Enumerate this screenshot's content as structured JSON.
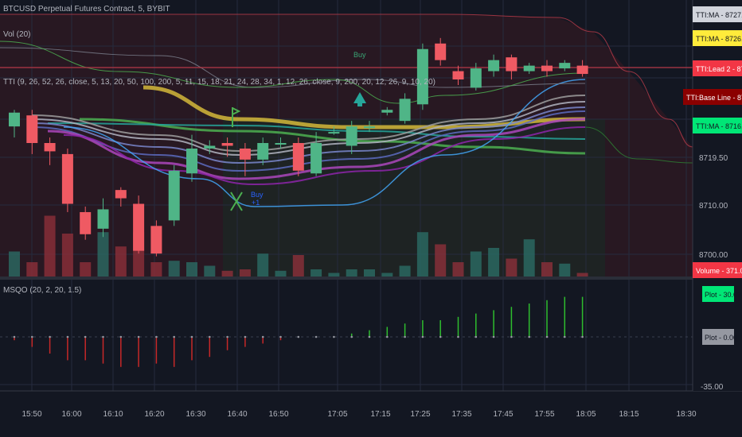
{
  "header": {
    "title": "BTCUSD Perpetual Futures Contract, 5, BYBIT",
    "volume_study": "Vol (20)",
    "tti_study": "TTI (9, 26, 52, 26, close, 5, 13, 20, 50, 100, 200, 5, 11, 15, 18, 21, 24, 28, 34, 1, 12, 26, close, 9, 200, 20, 12, 26, 9, 10, 20)",
    "msqo_study": "MSQO (20, 2, 20, 1.5)"
  },
  "annotations": {
    "buy_top": "Buy",
    "buy_lower": "Buy",
    "buy_lower_sub": "+1"
  },
  "price_axis": {
    "ticks": [
      "8719.50",
      "8710.00",
      "8700.00"
    ],
    "labels": [
      {
        "text": "TTI:MA - 8727.42",
        "color": "#d1d4dc",
        "textcolor": "#131722"
      },
      {
        "text": "TTI:MA - 8726.61",
        "color": "#ffeb3b",
        "textcolor": "#131722"
      },
      {
        "text": "TTI:Lead 2 - 8722.25",
        "color": "#f23645",
        "textcolor": "#ffffff"
      },
      {
        "text": "TTI:Base Line - 8722.25",
        "color": "#8b0000",
        "textcolor": "#ffffff"
      },
      {
        "text": "TTI:MA - 8716.70",
        "color": "#00e676",
        "textcolor": "#131722"
      },
      {
        "text": "Volume - 371.081K",
        "color": "#f23645",
        "textcolor": "#ffffff"
      }
    ]
  },
  "msqo_axis": {
    "labels": [
      {
        "text": "Plot - 30.09",
        "color": "#00e676",
        "textcolor": "#131722"
      },
      {
        "text": "Plot - 0.00",
        "color": "#9598a1",
        "textcolor": "#131722"
      }
    ],
    "ticks": [
      "-35.00"
    ]
  },
  "time_axis": {
    "ticks": [
      "15:50",
      "16:00",
      "16:10",
      "16:20",
      "16:30",
      "16:40",
      "16:50",
      "17:05",
      "17:15",
      "17:25",
      "17:35",
      "17:45",
      "17:55",
      "18:05",
      "18:15",
      "18:30"
    ]
  },
  "chart_data": {
    "type": "candlestick",
    "symbol": "BTCUSD",
    "interval": "5",
    "exchange": "BYBIT",
    "candles": [
      {
        "open": 8722.0,
        "close": 8724.5,
        "high": 8725.0,
        "low": 8720.0,
        "volume": 0.35
      },
      {
        "open": 8724.0,
        "close": 8719.0,
        "high": 8725.0,
        "low": 8717.0,
        "volume": 0.2
      },
      {
        "open": 8719.0,
        "close": 8717.5,
        "high": 8720.0,
        "low": 8715.0,
        "volume": 0.85
      },
      {
        "open": 8717.0,
        "close": 8708.0,
        "high": 8718.0,
        "low": 8706.5,
        "volume": 0.6
      },
      {
        "open": 8706.5,
        "close": 8702.5,
        "high": 8707.5,
        "low": 8701.5,
        "volume": 0.2
      },
      {
        "open": 8703.5,
        "close": 8707.0,
        "high": 8709.0,
        "low": 8702.0,
        "volume": 0.62
      },
      {
        "open": 8710.5,
        "close": 8709.0,
        "high": 8711.0,
        "low": 8707.5,
        "volume": 0.42
      },
      {
        "open": 8708.0,
        "close": 8699.5,
        "high": 8709.5,
        "low": 8699.0,
        "volume": 0.62
      },
      {
        "open": 8704.0,
        "close": 8699.0,
        "high": 8705.0,
        "low": 8698.5,
        "volume": 0.2
      },
      {
        "open": 8705.0,
        "close": 8714.0,
        "high": 8715.0,
        "low": 8704.0,
        "volume": 0.22
      },
      {
        "open": 8713.5,
        "close": 8718.0,
        "high": 8720.5,
        "low": 8712.0,
        "volume": 0.2
      },
      {
        "open": 8718.0,
        "close": 8718.5,
        "high": 8719.5,
        "low": 8717.0,
        "volume": 0.15
      },
      {
        "open": 8719.0,
        "close": 8718.5,
        "high": 8720.0,
        "low": 8716.5,
        "volume": 0.08
      },
      {
        "open": 8718.0,
        "close": 8716.0,
        "high": 8719.0,
        "low": 8713.0,
        "volume": 0.1
      },
      {
        "open": 8716.0,
        "close": 8719.0,
        "high": 8720.0,
        "low": 8715.0,
        "volume": 0.32
      },
      {
        "open": 8719.0,
        "close": 8719.0,
        "high": 8720.0,
        "low": 8718.0,
        "volume": 0.08
      },
      {
        "open": 8719.0,
        "close": 8714.0,
        "high": 8720.0,
        "low": 8713.0,
        "volume": 0.3
      },
      {
        "open": 8713.5,
        "close": 8719.0,
        "high": 8721.0,
        "low": 8713.0,
        "volume": 0.1
      },
      {
        "open": 8721.0,
        "close": 8721.0,
        "high": 8722.0,
        "low": 8720.5,
        "volume": 0.05
      },
      {
        "open": 8718.5,
        "close": 8722.0,
        "high": 8723.0,
        "low": 8717.0,
        "volume": 0.1
      },
      {
        "open": 8722.0,
        "close": 8722.0,
        "high": 8723.0,
        "low": 8721.0,
        "volume": 0.1
      },
      {
        "open": 8724.5,
        "close": 8725.0,
        "high": 8725.5,
        "low": 8724.0,
        "volume": 0.05
      },
      {
        "open": 8723.0,
        "close": 8727.0,
        "high": 8728.0,
        "low": 8722.5,
        "volume": 0.15
      },
      {
        "open": 8726.0,
        "close": 8736.0,
        "high": 8737.0,
        "low": 8725.0,
        "volume": 0.62
      },
      {
        "open": 8737.0,
        "close": 8734.0,
        "high": 8738.0,
        "low": 8733.0,
        "volume": 0.45
      },
      {
        "open": 8732.0,
        "close": 8730.5,
        "high": 8733.0,
        "low": 8729.5,
        "volume": 0.2
      },
      {
        "open": 8729.0,
        "close": 8732.5,
        "high": 8733.5,
        "low": 8728.5,
        "volume": 0.35
      },
      {
        "open": 8732.0,
        "close": 8734.0,
        "high": 8735.0,
        "low": 8731.0,
        "volume": 0.4
      },
      {
        "open": 8734.5,
        "close": 8732.0,
        "high": 8735.0,
        "low": 8730.5,
        "volume": 0.25
      },
      {
        "open": 8732.0,
        "close": 8733.0,
        "high": 8733.5,
        "low": 8731.5,
        "volume": 0.52
      },
      {
        "open": 8733.0,
        "close": 8732.0,
        "high": 8734.0,
        "low": 8731.0,
        "volume": 0.2
      },
      {
        "open": 8732.5,
        "close": 8733.5,
        "high": 8734.0,
        "low": 8732.0,
        "volume": 0.18
      },
      {
        "open": 8733.0,
        "close": 8731.5,
        "high": 8734.0,
        "low": 8731.0,
        "volume": 0.05
      }
    ],
    "msqo_values": [
      -1,
      -3,
      -5,
      -7,
      -7,
      -8,
      -9,
      -9,
      -8,
      -9,
      -7,
      -6,
      -4,
      -3,
      -2,
      -1,
      0,
      0,
      0,
      1,
      2,
      3,
      4,
      5,
      5,
      6,
      7,
      8,
      9,
      10,
      11,
      12,
      12
    ]
  }
}
